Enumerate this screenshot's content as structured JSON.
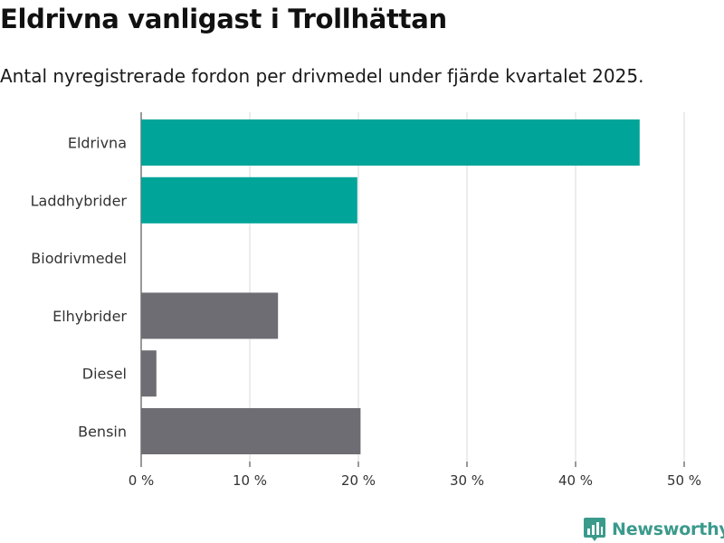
{
  "header": {
    "title": "Eldrivna vanligast i Trollhättan",
    "subtitle": "Antal nyregistrerade fordon per drivmedel under fjärde kvartalet 2025."
  },
  "brand": {
    "name": "Newsworthy",
    "icon": "bar-chart-icon"
  },
  "colors": {
    "highlight": "#00a499",
    "default": "#6e6d73",
    "grid": "#d9d9d9",
    "axis": "#333333"
  },
  "chart_data": {
    "type": "bar",
    "orientation": "horizontal",
    "title": "Eldrivna vanligast i Trollhättan",
    "subtitle": "Antal nyregistrerade fordon per drivmedel under fjärde kvartalet 2025.",
    "xlabel": "",
    "ylabel": "",
    "unit": "%",
    "xlim": [
      0,
      50
    ],
    "xticks": [
      0,
      10,
      20,
      30,
      40,
      50
    ],
    "xtick_labels": [
      "0 %",
      "10 %",
      "20 %",
      "30 %",
      "40 %",
      "50 %"
    ],
    "categories": [
      "Eldrivna",
      "Laddhybrider",
      "Biodrivmedel",
      "Elhybrider",
      "Diesel",
      "Bensin"
    ],
    "values": [
      45.9,
      19.9,
      0,
      12.6,
      1.4,
      20.2
    ],
    "highlighted": [
      true,
      true,
      false,
      false,
      false,
      false
    ],
    "grid": true
  }
}
